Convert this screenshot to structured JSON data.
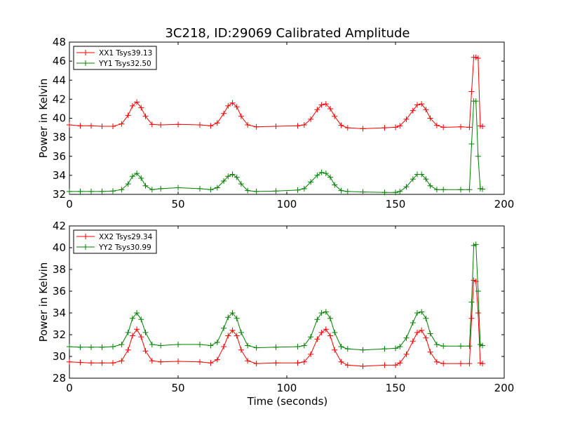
{
  "figure": {
    "title": "3C218, ID:29069 Calibrated Amplitude",
    "xlabel": "Time (seconds)"
  },
  "colors": {
    "red": "#ff0000",
    "green": "#008000"
  },
  "chart_data": [
    {
      "type": "line",
      "ylabel": "Power in Kelvin",
      "xlabel": "",
      "xlim": [
        0,
        200
      ],
      "ylim": [
        32,
        48
      ],
      "xticks": [
        0,
        50,
        100,
        150,
        200
      ],
      "yticks": [
        32,
        34,
        36,
        38,
        40,
        42,
        44,
        46,
        48
      ],
      "grid": false,
      "legend": "top-left",
      "marker": "+",
      "series": [
        {
          "name": "XX1 Tsys39.13",
          "color": "#ff0000",
          "x": [
            0,
            5,
            10,
            15,
            20,
            24,
            27,
            29,
            31,
            33,
            35,
            38,
            42,
            50,
            60,
            65,
            68,
            71,
            73,
            75,
            77,
            79,
            82,
            86,
            95,
            105,
            108,
            111,
            114,
            116,
            118,
            120,
            122,
            125,
            128,
            135,
            145,
            150,
            152,
            155,
            158,
            160,
            162,
            164,
            166,
            169,
            172,
            180,
            184,
            185,
            186,
            187,
            188,
            189,
            190
          ],
          "y": [
            39.3,
            39.2,
            39.2,
            39.15,
            39.15,
            39.4,
            40.3,
            41.3,
            41.7,
            41.1,
            40.2,
            39.35,
            39.3,
            39.35,
            39.3,
            39.2,
            39.5,
            40.5,
            41.3,
            41.6,
            41.2,
            40.2,
            39.3,
            39.1,
            39.15,
            39.2,
            39.3,
            39.9,
            40.9,
            41.4,
            41.5,
            41.0,
            40.2,
            39.25,
            39.0,
            38.9,
            39.0,
            39.05,
            39.2,
            39.9,
            40.8,
            41.4,
            41.5,
            40.9,
            40.0,
            39.25,
            39.05,
            39.1,
            39.05,
            42.8,
            46.4,
            46.4,
            46.3,
            39.2,
            39.15
          ]
        },
        {
          "name": "YY1 Tsys32.50",
          "color": "#008000",
          "x": [
            0,
            5,
            10,
            15,
            20,
            24,
            27,
            29,
            31,
            33,
            35,
            38,
            42,
            50,
            60,
            65,
            68,
            71,
            73,
            75,
            77,
            79,
            82,
            86,
            95,
            105,
            108,
            111,
            114,
            116,
            118,
            120,
            122,
            125,
            128,
            135,
            145,
            150,
            152,
            155,
            158,
            160,
            162,
            164,
            166,
            169,
            172,
            180,
            184,
            185,
            186,
            187,
            188,
            189,
            190
          ],
          "y": [
            32.3,
            32.3,
            32.3,
            32.3,
            32.35,
            32.5,
            33.1,
            33.9,
            34.2,
            33.7,
            32.9,
            32.5,
            32.6,
            32.7,
            32.6,
            32.5,
            32.7,
            33.4,
            33.9,
            34.1,
            33.8,
            33.1,
            32.4,
            32.3,
            32.35,
            32.45,
            32.6,
            33.3,
            34.0,
            34.3,
            34.2,
            33.8,
            33.0,
            32.4,
            32.3,
            32.25,
            32.2,
            32.2,
            32.3,
            32.8,
            33.6,
            34.1,
            34.1,
            33.6,
            32.9,
            32.5,
            32.5,
            32.5,
            32.5,
            37.3,
            41.8,
            41.8,
            36.0,
            32.6,
            32.55
          ]
        }
      ]
    },
    {
      "type": "line",
      "ylabel": "Power in Kelvin",
      "xlabel": "Time (seconds)",
      "xlim": [
        0,
        200
      ],
      "ylim": [
        28,
        42
      ],
      "xticks": [
        0,
        50,
        100,
        150,
        200
      ],
      "yticks": [
        28,
        30,
        32,
        34,
        36,
        38,
        40,
        42
      ],
      "grid": false,
      "legend": "top-left",
      "marker": "+",
      "series": [
        {
          "name": "XX2 Tsys29.34",
          "color": "#ff0000",
          "x": [
            0,
            5,
            10,
            15,
            20,
            24,
            27,
            29,
            31,
            33,
            35,
            38,
            42,
            50,
            60,
            65,
            68,
            71,
            73,
            75,
            77,
            79,
            82,
            86,
            95,
            105,
            108,
            111,
            114,
            116,
            118,
            120,
            122,
            125,
            128,
            135,
            145,
            150,
            152,
            155,
            158,
            160,
            162,
            164,
            166,
            169,
            172,
            180,
            184,
            185,
            186,
            187,
            188,
            189,
            190
          ],
          "y": [
            29.5,
            29.45,
            29.4,
            29.4,
            29.4,
            29.6,
            30.6,
            31.9,
            32.5,
            31.8,
            30.5,
            29.6,
            29.5,
            29.55,
            29.5,
            29.4,
            29.7,
            30.9,
            31.9,
            32.4,
            31.9,
            30.6,
            29.6,
            29.35,
            29.4,
            29.4,
            29.5,
            30.2,
            31.6,
            32.2,
            32.5,
            31.9,
            30.6,
            29.5,
            29.2,
            29.1,
            29.2,
            29.2,
            29.4,
            30.2,
            31.4,
            32.2,
            32.4,
            31.7,
            30.4,
            29.5,
            29.35,
            29.35,
            29.35,
            33.5,
            37.0,
            36.9,
            34.0,
            29.4,
            29.35
          ]
        },
        {
          "name": "YY2 Tsys30.99",
          "color": "#008000",
          "x": [
            0,
            5,
            10,
            15,
            20,
            24,
            27,
            29,
            31,
            33,
            35,
            38,
            42,
            50,
            60,
            65,
            68,
            71,
            73,
            75,
            77,
            79,
            82,
            86,
            95,
            105,
            108,
            111,
            114,
            116,
            118,
            120,
            122,
            125,
            128,
            135,
            145,
            150,
            152,
            155,
            158,
            160,
            162,
            164,
            166,
            169,
            172,
            180,
            184,
            185,
            186,
            187,
            188,
            189,
            190
          ],
          "y": [
            30.9,
            30.85,
            30.85,
            30.85,
            30.9,
            31.1,
            32.2,
            33.5,
            34.0,
            33.4,
            32.2,
            31.1,
            31.0,
            31.1,
            31.1,
            31.0,
            31.3,
            32.6,
            33.6,
            34.0,
            33.5,
            32.2,
            31.0,
            30.8,
            30.85,
            30.9,
            31.0,
            31.8,
            33.4,
            34.0,
            34.1,
            33.5,
            32.2,
            30.9,
            30.7,
            30.6,
            30.7,
            30.75,
            30.9,
            31.7,
            33.1,
            34.0,
            34.1,
            33.5,
            32.1,
            31.1,
            30.95,
            30.95,
            30.95,
            35.0,
            40.2,
            40.3,
            36.0,
            31.1,
            31.0
          ]
        }
      ]
    }
  ]
}
